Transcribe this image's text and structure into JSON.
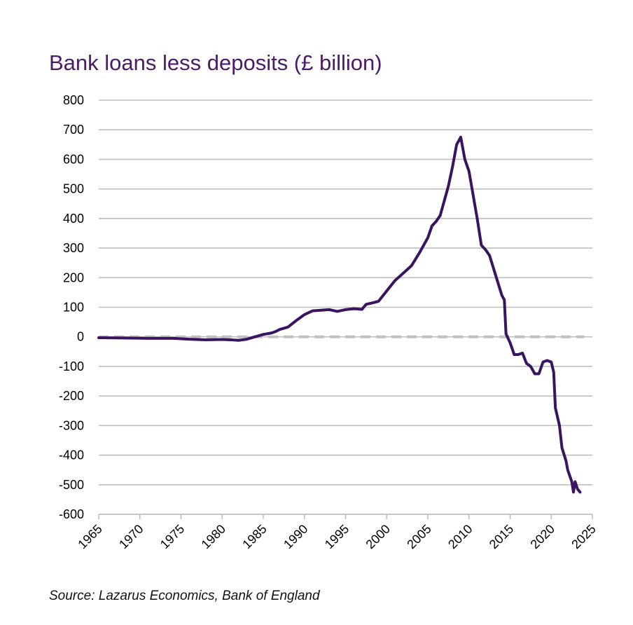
{
  "chart_data": {
    "type": "line",
    "title": "Bank loans less deposits (£ billion)",
    "xlabel": "",
    "ylabel": "",
    "xlim": [
      1965,
      2025
    ],
    "ylim": [
      -600,
      800
    ],
    "x_ticks": [
      "1965",
      "1970",
      "1975",
      "1980",
      "1985",
      "1990",
      "1995",
      "2000",
      "2005",
      "2010",
      "2015",
      "2020",
      "2025"
    ],
    "y_ticks": [
      "800",
      "700",
      "600",
      "500",
      "400",
      "300",
      "200",
      "100",
      "0",
      "-100",
      "-200",
      "-300",
      "-400",
      "-500",
      "-600"
    ],
    "grid": "horizontal",
    "legend": "none",
    "series": [
      {
        "color": "#3b1460",
        "points": [
          [
            1965,
            -3
          ],
          [
            1968,
            -4
          ],
          [
            1971,
            -5
          ],
          [
            1974,
            -5
          ],
          [
            1976,
            -8
          ],
          [
            1978,
            -10
          ],
          [
            1980,
            -9
          ],
          [
            1981,
            -10
          ],
          [
            1982,
            -12
          ],
          [
            1983,
            -8
          ],
          [
            1984,
            0
          ],
          [
            1985,
            8
          ],
          [
            1986,
            13
          ],
          [
            1986.5,
            18
          ],
          [
            1987,
            25
          ],
          [
            1988,
            33
          ],
          [
            1989,
            55
          ],
          [
            1990,
            75
          ],
          [
            1991,
            88
          ],
          [
            1992,
            90
          ],
          [
            1993,
            92
          ],
          [
            1994,
            86
          ],
          [
            1995,
            92
          ],
          [
            1996,
            95
          ],
          [
            1997,
            93
          ],
          [
            1997.5,
            110
          ],
          [
            1998,
            113
          ],
          [
            1999,
            120
          ],
          [
            2000,
            155
          ],
          [
            2001,
            190
          ],
          [
            2002,
            215
          ],
          [
            2003,
            240
          ],
          [
            2004,
            285
          ],
          [
            2005,
            335
          ],
          [
            2005.5,
            375
          ],
          [
            2006,
            390
          ],
          [
            2006.5,
            410
          ],
          [
            2007,
            460
          ],
          [
            2007.5,
            510
          ],
          [
            2008,
            575
          ],
          [
            2008.5,
            650
          ],
          [
            2009,
            675
          ],
          [
            2009.5,
            600
          ],
          [
            2010,
            560
          ],
          [
            2010.5,
            480
          ],
          [
            2011,
            400
          ],
          [
            2011.5,
            310
          ],
          [
            2012,
            295
          ],
          [
            2012.5,
            275
          ],
          [
            2013,
            230
          ],
          [
            2013.5,
            185
          ],
          [
            2014,
            140
          ],
          [
            2014.3,
            125
          ],
          [
            2014.5,
            10
          ],
          [
            2015,
            -20
          ],
          [
            2015.5,
            -60
          ],
          [
            2016,
            -60
          ],
          [
            2016.5,
            -55
          ],
          [
            2017,
            -90
          ],
          [
            2017.5,
            -100
          ],
          [
            2018,
            -125
          ],
          [
            2018.5,
            -125
          ],
          [
            2019,
            -85
          ],
          [
            2019.5,
            -80
          ],
          [
            2020,
            -85
          ],
          [
            2020.3,
            -120
          ],
          [
            2020.5,
            -240
          ],
          [
            2021,
            -300
          ],
          [
            2021.3,
            -375
          ],
          [
            2021.8,
            -420
          ],
          [
            2022,
            -450
          ],
          [
            2022.5,
            -490
          ],
          [
            2022.7,
            -525
          ],
          [
            2022.9,
            -490
          ],
          [
            2023.2,
            -515
          ],
          [
            2023.5,
            -525
          ]
        ]
      },
      {
        "color": "#c0c0c0",
        "dashed": true,
        "points": [
          [
            1965,
            0
          ],
          [
            2024,
            0
          ]
        ]
      }
    ]
  },
  "source": "Source: Lazarus Economics, Bank of England"
}
